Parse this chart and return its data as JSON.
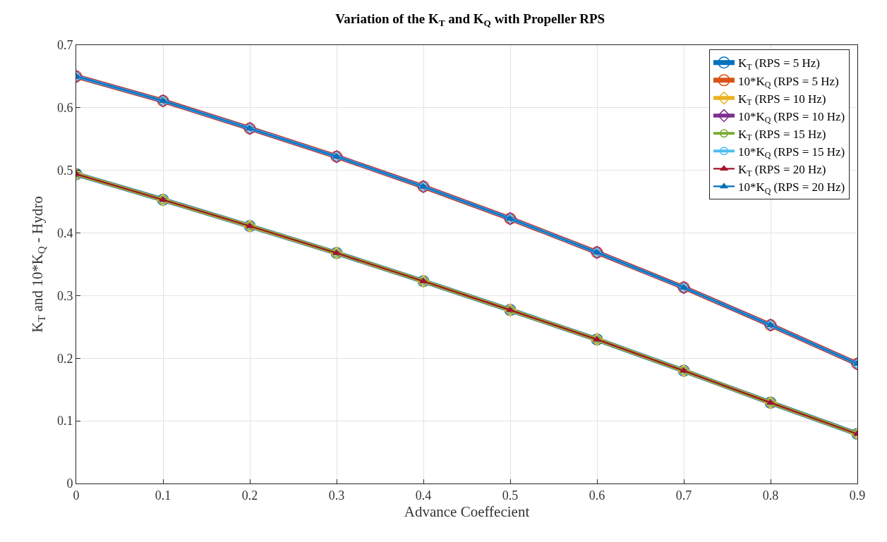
{
  "chart_data": {
    "type": "line",
    "title": "Variation of the K$_{T}$ and K$_{Q}$ with Propeller RPS",
    "xlabel": "Advance Coeffecient",
    "ylabel": "K$_{T}$ and 10*K$_{Q}$ - Hydro",
    "x": [
      0,
      0.1,
      0.2,
      0.3,
      0.4,
      0.5,
      0.6,
      0.7,
      0.8,
      0.9
    ],
    "series": [
      {
        "name": "K$_{T}$ (RPS = 5 Hz)",
        "color": "#0072bd",
        "marker": "circle",
        "values": [
          0.494,
          0.453,
          0.411,
          0.368,
          0.323,
          0.277,
          0.23,
          0.18,
          0.129,
          0.079
        ]
      },
      {
        "name": "10*K$_{Q}$ (RPS = 5 Hz)",
        "color": "#d95319",
        "marker": "circle",
        "values": [
          0.65,
          0.611,
          0.567,
          0.522,
          0.474,
          0.423,
          0.369,
          0.313,
          0.253,
          0.191
        ]
      },
      {
        "name": "K$_{T}$ (RPS = 10 Hz)",
        "color": "#edb120",
        "marker": "diamond",
        "values": [
          0.494,
          0.453,
          0.411,
          0.368,
          0.323,
          0.277,
          0.23,
          0.18,
          0.129,
          0.079
        ]
      },
      {
        "name": "10*K$_{Q}$ (RPS = 10 Hz)",
        "color": "#7e2f8e",
        "marker": "diamond",
        "values": [
          0.65,
          0.611,
          0.567,
          0.522,
          0.474,
          0.423,
          0.369,
          0.313,
          0.253,
          0.191
        ]
      },
      {
        "name": "K$_{T}$ (RPS = 15 Hz)",
        "color": "#77ac30",
        "marker": "circle",
        "values": [
          0.494,
          0.453,
          0.411,
          0.368,
          0.323,
          0.277,
          0.23,
          0.18,
          0.129,
          0.079
        ]
      },
      {
        "name": "10*K$_{Q}$ (RPS = 15 Hz)",
        "color": "#4dbeee",
        "marker": "circle",
        "values": [
          0.65,
          0.611,
          0.567,
          0.522,
          0.474,
          0.423,
          0.369,
          0.313,
          0.253,
          0.191
        ]
      },
      {
        "name": "K$_{T}$ (RPS = 20 Hz)",
        "color": "#a2142f",
        "marker": "triangle",
        "values": [
          0.494,
          0.453,
          0.411,
          0.368,
          0.323,
          0.277,
          0.23,
          0.18,
          0.129,
          0.079
        ]
      },
      {
        "name": "10*K$_{Q}$ (RPS = 20 Hz)",
        "color": "#0072bd",
        "marker": "triangle",
        "values": [
          0.65,
          0.611,
          0.567,
          0.522,
          0.474,
          0.423,
          0.369,
          0.313,
          0.253,
          0.191
        ]
      }
    ],
    "xlim": [
      0,
      0.9
    ],
    "xticks": [
      0,
      0.1,
      0.2,
      0.3,
      0.4,
      0.5,
      0.6,
      0.7,
      0.8,
      0.9
    ],
    "ylim": [
      0,
      0.7
    ],
    "yticks": [
      0,
      0.1,
      0.2,
      0.3,
      0.4,
      0.5,
      0.6,
      0.7
    ],
    "grid": true,
    "legend": "top right"
  }
}
